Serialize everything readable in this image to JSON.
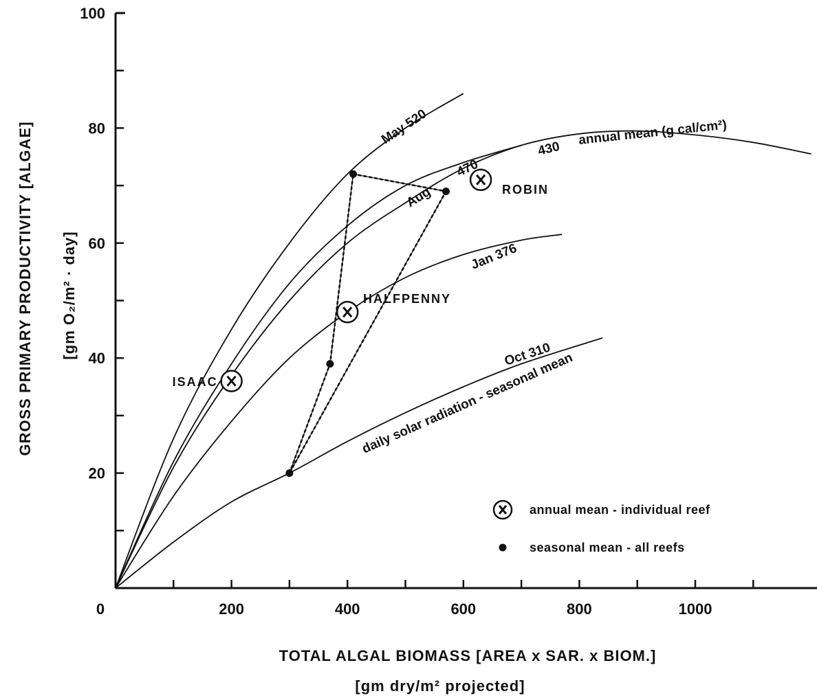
{
  "chart_data": {
    "type": "line",
    "xlabel": "TOTAL ALGAL BIOMASS [AREA x SAR. x BIOM.]",
    "xlabel_sub": "[gm dry/m² projected]",
    "ylabel": "GROSS PRIMARY PRODUCTIVITY [ALGAE]",
    "ylabel_sub": "[gm O₂/m² · day]",
    "xlim": [
      0,
      1200
    ],
    "ylim": [
      0,
      100
    ],
    "x_ticks": [
      0,
      200,
      400,
      600,
      800,
      1000
    ],
    "y_ticks": [
      20,
      40,
      60,
      80,
      100
    ],
    "x_tick_labels": [
      "0",
      "200",
      "400",
      "600",
      "800",
      "1000"
    ],
    "y_tick_labels": [
      "20",
      "40",
      "60",
      "80",
      "100"
    ],
    "curves": [
      {
        "label": "May 520",
        "points": [
          [
            0,
            0
          ],
          [
            100,
            26
          ],
          [
            200,
            45
          ],
          [
            300,
            60
          ],
          [
            400,
            72
          ],
          [
            500,
            80
          ],
          [
            600,
            86
          ]
        ]
      },
      {
        "label": "470",
        "month": "Aug",
        "points": [
          [
            0,
            0
          ],
          [
            100,
            22
          ],
          [
            200,
            39
          ],
          [
            300,
            53
          ],
          [
            400,
            63
          ],
          [
            500,
            70
          ],
          [
            600,
            74
          ],
          [
            700,
            77
          ]
        ]
      },
      {
        "label": "430",
        "note": "annual mean (g cal/cm²)",
        "points": [
          [
            0,
            0
          ],
          [
            100,
            21
          ],
          [
            200,
            37
          ],
          [
            300,
            50
          ],
          [
            400,
            60
          ],
          [
            500,
            67
          ],
          [
            600,
            73
          ],
          [
            700,
            77
          ],
          [
            800,
            79
          ],
          [
            900,
            79.5
          ],
          [
            1000,
            78.8
          ],
          [
            1100,
            77.5
          ],
          [
            1200,
            75.5
          ]
        ]
      },
      {
        "label": "Jan 376",
        "points": [
          [
            0,
            0
          ],
          [
            100,
            16
          ],
          [
            200,
            29
          ],
          [
            300,
            40
          ],
          [
            400,
            48
          ],
          [
            500,
            54
          ],
          [
            600,
            58
          ],
          [
            700,
            60.5
          ],
          [
            770,
            61.5
          ]
        ]
      },
      {
        "label": "Oct 310",
        "note": "daily solar radiation - seasonal mean",
        "points": [
          [
            0,
            0
          ],
          [
            100,
            8
          ],
          [
            200,
            15
          ],
          [
            300,
            20
          ],
          [
            400,
            25.5
          ],
          [
            500,
            30.5
          ],
          [
            600,
            35
          ],
          [
            700,
            39
          ],
          [
            840,
            43.5
          ]
        ]
      }
    ],
    "seasonal_means": [
      {
        "x": 410,
        "y": 72
      },
      {
        "x": 570,
        "y": 69
      },
      {
        "x": 370,
        "y": 39
      },
      {
        "x": 300,
        "y": 20
      }
    ],
    "seasonal_links": [
      [
        0,
        1
      ],
      [
        1,
        3
      ],
      [
        3,
        2
      ],
      [
        2,
        0
      ]
    ],
    "reef_means": [
      {
        "label": "ISAAC",
        "x": 200,
        "y": 36
      },
      {
        "label": "HALFPENNY",
        "x": 400,
        "y": 48
      },
      {
        "label": "ROBIN",
        "x": 630,
        "y": 71
      }
    ],
    "legend": [
      {
        "symbol": "X",
        "label": "annual mean - individual reef"
      },
      {
        "symbol": "dot",
        "label": "seasonal mean - all reefs"
      }
    ]
  }
}
